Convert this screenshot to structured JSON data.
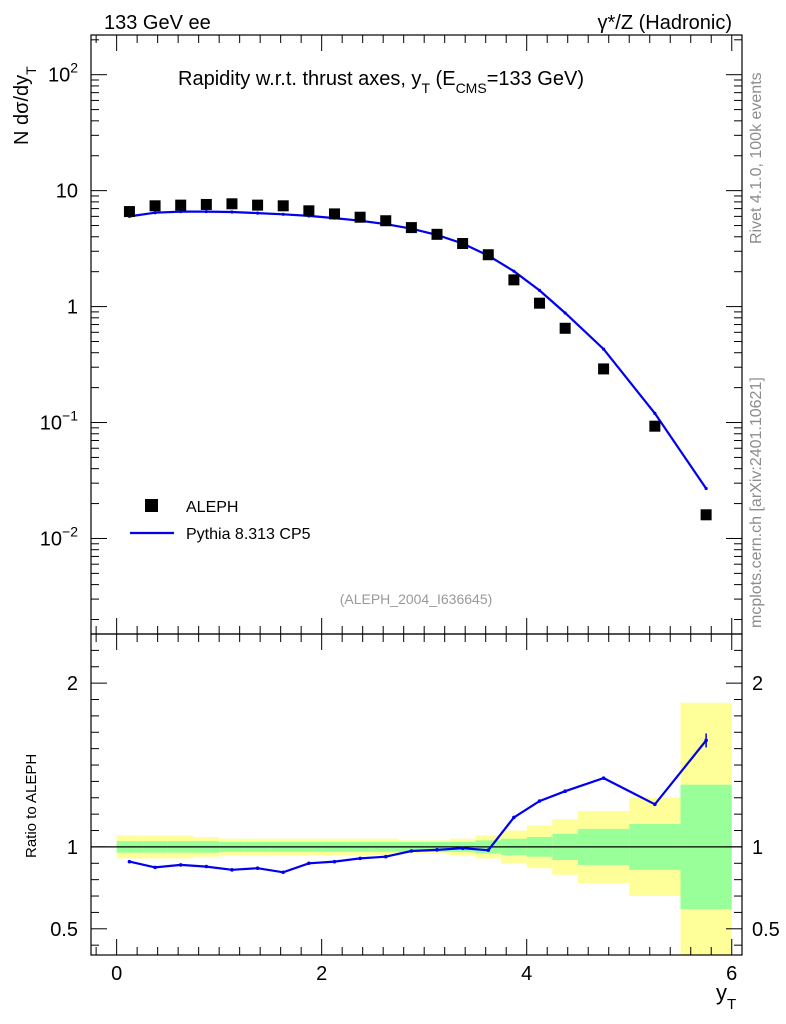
{
  "header": {
    "energy_label": "133 GeV ee",
    "process_label": "γ*/Z (Hadronic)"
  },
  "side": {
    "version_label": "Rivet 4.1.0,  100k events",
    "source_label": "mcplots.cern.ch [arXiv:2401.10621]"
  },
  "chart_data": [
    {
      "type": "scatter",
      "title": "Rapidity w.r.t. thrust axes, y_T (E_CMS=133 GeV)",
      "title_parts": {
        "main": "Rapidity w.r.t. thrust axes, y",
        "sub_T": "T",
        "mid": " (E",
        "sub_cms": "CMS",
        "tail": "=133 GeV)"
      },
      "ylabel": "N  dσ/dy",
      "ylabel_sub": "T",
      "yscale": "log",
      "ylim": [
        0.0015,
        220
      ],
      "xlim": [
        -0.25,
        6.1
      ],
      "y_ticks": [
        {
          "value": 0.01,
          "base": "10",
          "exp": "−2"
        },
        {
          "value": 0.1,
          "base": "10",
          "exp": "−1"
        },
        {
          "value": 1,
          "base": "1",
          "exp": ""
        },
        {
          "value": 10,
          "base": "10",
          "exp": ""
        },
        {
          "value": 100,
          "base": "10",
          "exp": "2"
        }
      ],
      "analysis_id": "(ALEPH_2004_I636645)",
      "legend": [
        {
          "name": "ALEPH",
          "marker": "square",
          "color": "#000000"
        },
        {
          "name": "Pythia 8.313 CP5",
          "marker": "line",
          "color": "#0000ee"
        }
      ],
      "series": [
        {
          "name": "ALEPH",
          "x": [
            0.125,
            0.375,
            0.625,
            0.875,
            1.125,
            1.375,
            1.625,
            1.875,
            2.125,
            2.375,
            2.625,
            2.875,
            3.125,
            3.375,
            3.625,
            3.875,
            4.125,
            4.375,
            4.75,
            5.25,
            5.75
          ],
          "y": [
            6.6,
            7.4,
            7.5,
            7.6,
            7.7,
            7.5,
            7.4,
            6.7,
            6.3,
            5.9,
            5.5,
            4.8,
            4.2,
            3.5,
            2.8,
            1.7,
            1.07,
            0.65,
            0.29,
            0.093,
            0.016
          ]
        },
        {
          "name": "Pythia 8.313 CP5",
          "x": [
            0.125,
            0.375,
            0.625,
            0.875,
            1.125,
            1.375,
            1.625,
            1.875,
            2.125,
            2.375,
            2.625,
            2.875,
            3.125,
            3.375,
            3.625,
            3.875,
            4.125,
            4.375,
            4.75,
            5.25,
            5.75
          ],
          "y": [
            6.0,
            6.45,
            6.6,
            6.6,
            6.55,
            6.4,
            6.25,
            6.05,
            5.8,
            5.5,
            5.15,
            4.7,
            4.15,
            3.5,
            2.75,
            2.02,
            1.38,
            0.88,
            0.43,
            0.12,
            0.027
          ]
        }
      ]
    },
    {
      "type": "line",
      "ylabel": "Ratio to ALEPH",
      "xlabel": "y",
      "xlabel_sub": "T",
      "ylim": [
        0.34,
        2.3
      ],
      "xlim": [
        -0.25,
        6.1
      ],
      "x_ticks": [
        0,
        2,
        4,
        6
      ],
      "y_ticks": [
        0.5,
        1,
        2
      ],
      "reference_line": 1,
      "bins": [
        0,
        0.25,
        0.5,
        0.75,
        1.0,
        1.25,
        1.5,
        1.75,
        2.0,
        2.25,
        2.5,
        2.75,
        3.0,
        3.25,
        3.5,
        3.75,
        4.0,
        4.25,
        4.5,
        5.0,
        5.5,
        6.0
      ],
      "band_inner": [
        0.035,
        0.035,
        0.035,
        0.035,
        0.03,
        0.03,
        0.03,
        0.03,
        0.03,
        0.03,
        0.03,
        0.03,
        0.03,
        0.03,
        0.04,
        0.05,
        0.06,
        0.08,
        0.11,
        0.14,
        0.38
      ],
      "band_outer": [
        0.07,
        0.07,
        0.07,
        0.06,
        0.05,
        0.05,
        0.05,
        0.05,
        0.05,
        0.05,
        0.05,
        0.04,
        0.04,
        0.05,
        0.07,
        0.1,
        0.13,
        0.17,
        0.22,
        0.3,
        0.88
      ],
      "series": [
        {
          "name": "Pythia 8.313 CP5",
          "x": [
            0.125,
            0.375,
            0.625,
            0.875,
            1.125,
            1.375,
            1.625,
            1.875,
            2.125,
            2.375,
            2.625,
            2.875,
            3.125,
            3.375,
            3.625,
            3.875,
            4.125,
            4.375,
            4.75,
            5.25,
            5.75
          ],
          "y": [
            0.91,
            0.875,
            0.89,
            0.88,
            0.86,
            0.87,
            0.845,
            0.9,
            0.91,
            0.93,
            0.94,
            0.975,
            0.982,
            0.992,
            0.98,
            1.18,
            1.28,
            1.34,
            1.42,
            1.26,
            1.65
          ]
        }
      ]
    }
  ]
}
